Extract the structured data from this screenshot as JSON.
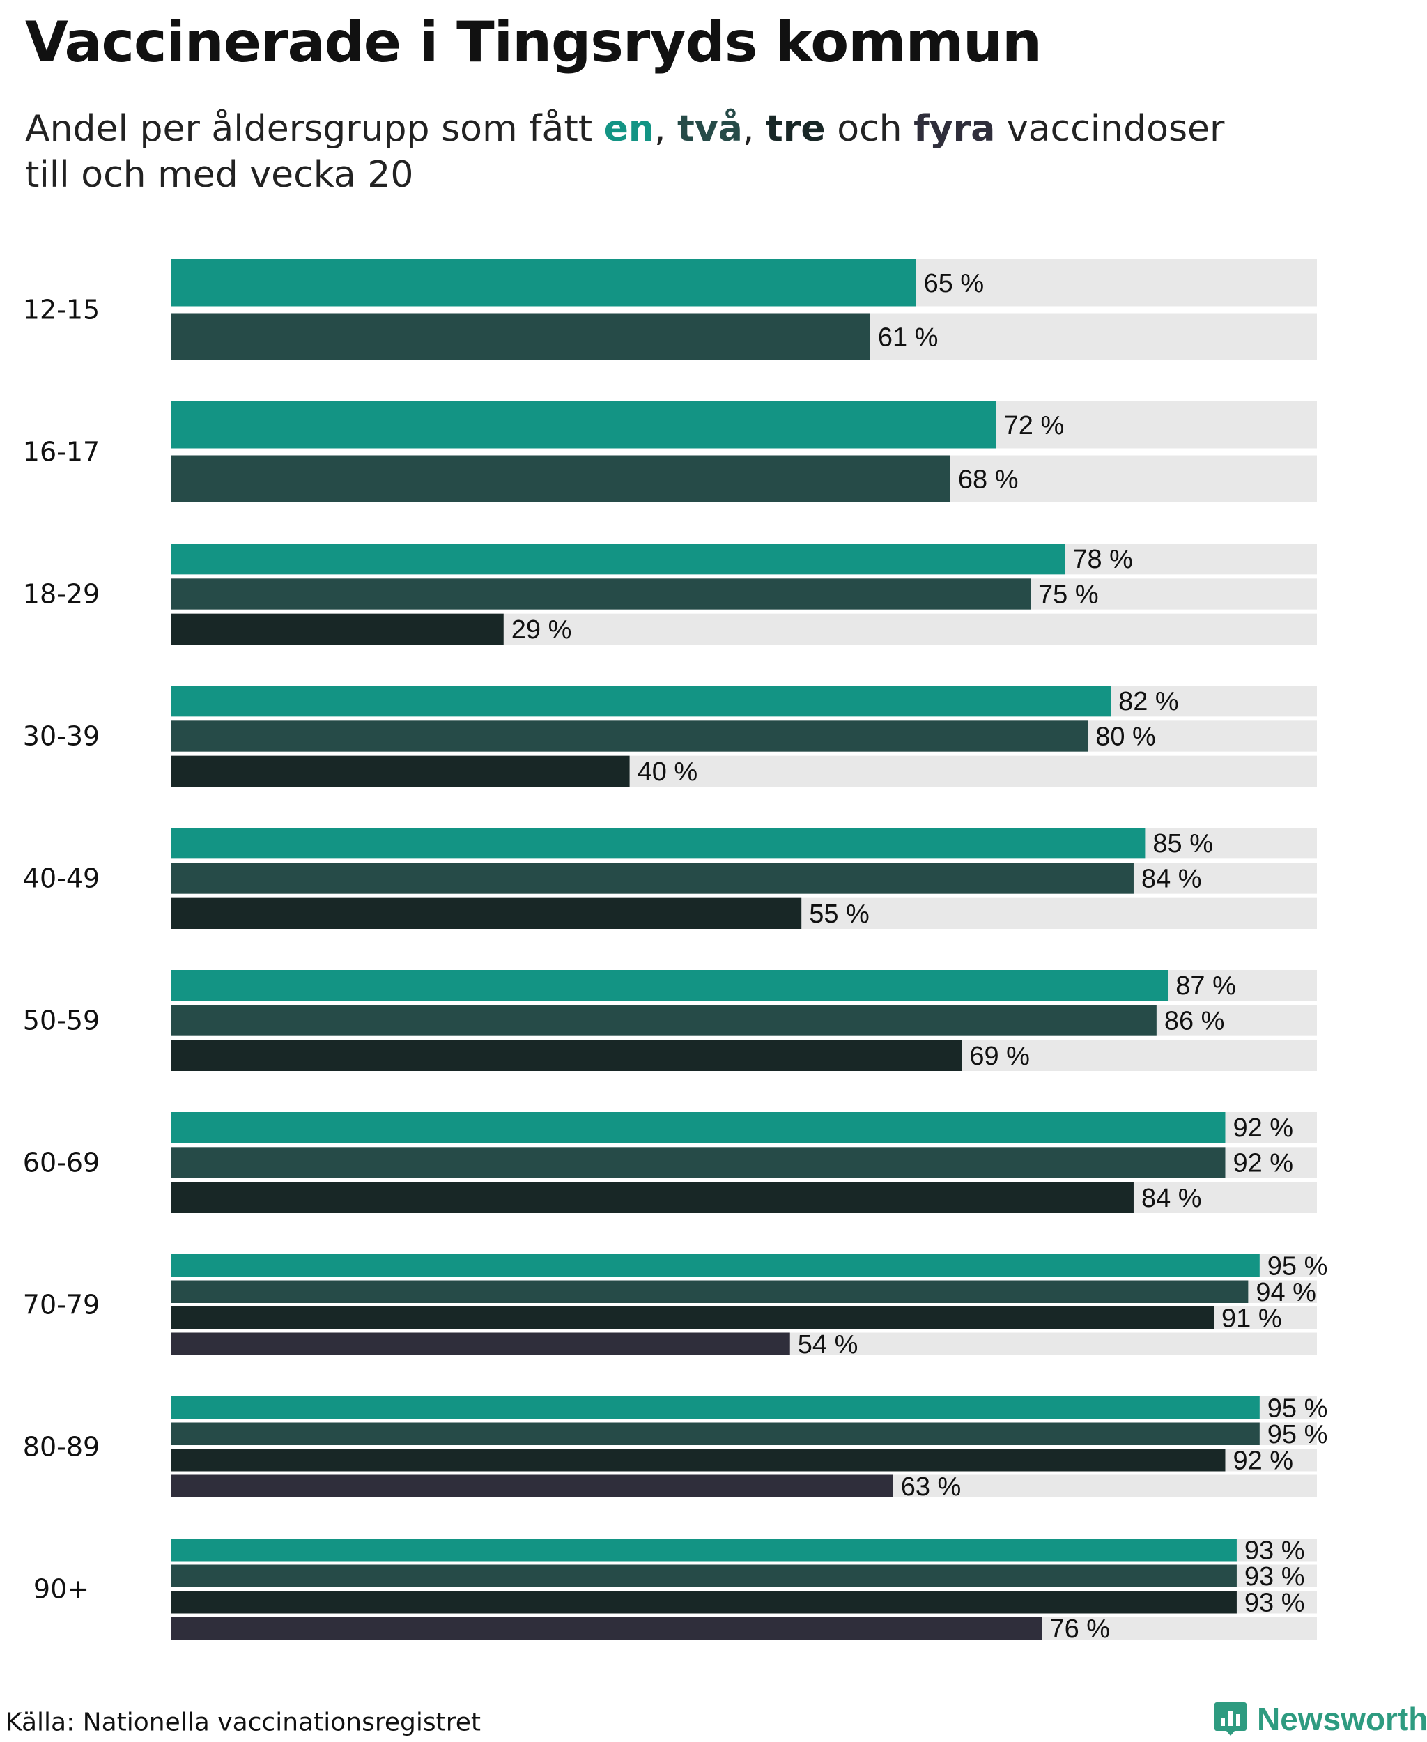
{
  "title": "Vaccinerade i Tingsryds kommun",
  "subtitle": {
    "part1": "Andel per åldersgrupp som fått ",
    "en": "en",
    "comma1": ", ",
    "tva": "två",
    "comma2": ", ",
    "tre": "tre",
    "och": " och ",
    "fyra": "fyra",
    "part2": " vaccindoser",
    "line2": "till och med vecka 20"
  },
  "colors": {
    "en": "#139484",
    "tva": "#264b48",
    "tre": "#182726",
    "fyra": "#2f2e3b",
    "track": "#e8e8e8"
  },
  "footer": {
    "source": "Källa: Nationella vaccinationsregistret",
    "brand": "Newsworthy"
  },
  "chart_data": {
    "type": "bar",
    "orientation": "horizontal",
    "unit": "%",
    "xlim": [
      0,
      100
    ],
    "categories": [
      "12-15",
      "16-17",
      "18-29",
      "30-39",
      "40-49",
      "50-59",
      "60-69",
      "70-79",
      "80-89",
      "90+"
    ],
    "series": [
      {
        "name": "en",
        "values": [
          65,
          72,
          78,
          82,
          85,
          87,
          92,
          95,
          95,
          93
        ]
      },
      {
        "name": "två",
        "values": [
          61,
          68,
          75,
          80,
          84,
          86,
          92,
          94,
          95,
          93
        ]
      },
      {
        "name": "tre",
        "values": [
          null,
          null,
          29,
          40,
          55,
          69,
          84,
          91,
          92,
          93
        ]
      },
      {
        "name": "fyra",
        "values": [
          null,
          null,
          null,
          null,
          null,
          null,
          null,
          54,
          63,
          76
        ]
      }
    ],
    "labels": [
      [
        "65 %",
        "61 %"
      ],
      [
        "72 %",
        "68 %"
      ],
      [
        "78 %",
        "75 %",
        "29 %"
      ],
      [
        "82 %",
        "80 %",
        "40 %"
      ],
      [
        "85 %",
        "84 %",
        "55 %"
      ],
      [
        "87 %",
        "86 %",
        "69 %"
      ],
      [
        "92 %",
        "92 %",
        "84 %"
      ],
      [
        "95 %",
        "94 %",
        "91 %",
        "54 %"
      ],
      [
        "95 %",
        "95 %",
        "92 %",
        "63 %"
      ],
      [
        "93 %",
        "93 %",
        "93 %",
        "76 %"
      ]
    ],
    "grid": false,
    "legend": "inline in subtitle"
  }
}
